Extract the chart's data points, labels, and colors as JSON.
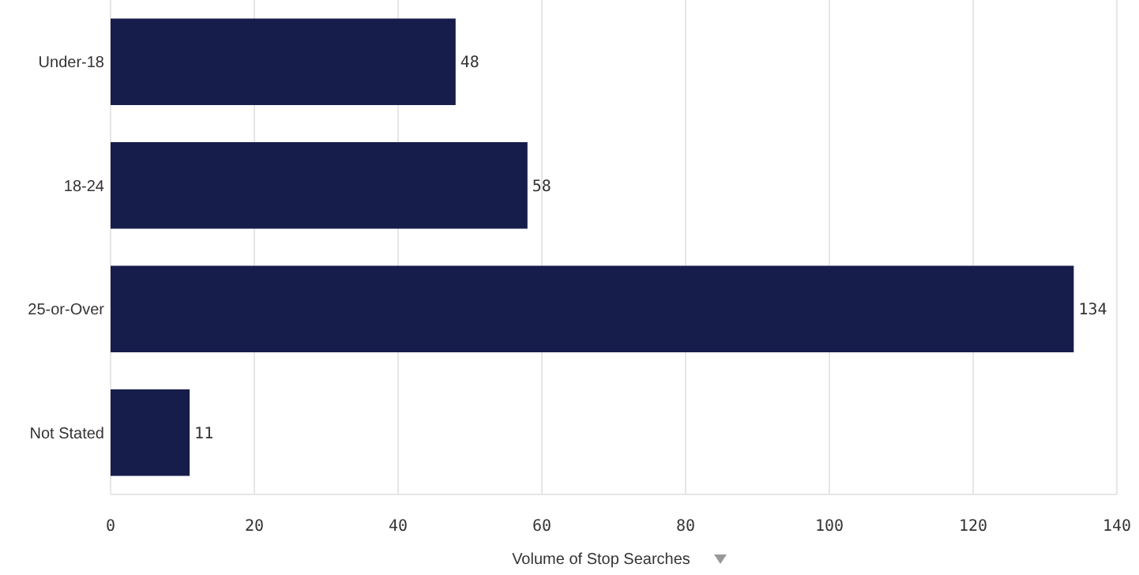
{
  "chart_data": {
    "type": "bar",
    "orientation": "horizontal",
    "xlabel": "Volume of Stop Searches",
    "categories": [
      "Under-18",
      "18-24",
      "25-or-Over",
      "Not Stated"
    ],
    "values": [
      48,
      58,
      134,
      11
    ],
    "color": "#161d4b",
    "xlim": [
      0,
      140
    ],
    "xticks": [
      0,
      20,
      40,
      60,
      80,
      100,
      120,
      140
    ],
    "grid": "x",
    "data_labels": true
  }
}
